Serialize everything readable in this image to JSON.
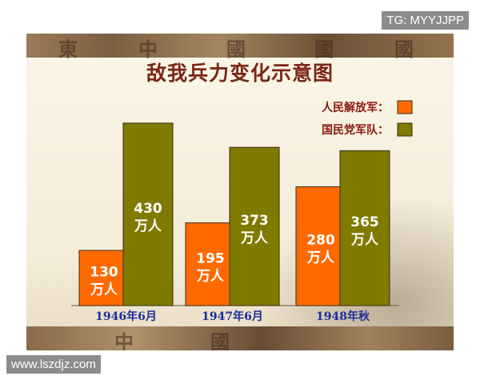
{
  "watermarks": {
    "top_right": "TG: MYYJJPP",
    "bottom_left": "www.lszdjz.com"
  },
  "colors": {
    "series_1": "#ff6a00",
    "series_2": "#7f7a00",
    "title": "#7a2616",
    "legend_text": "#8b1a10",
    "axis_labels": "#1a2f9c"
  },
  "chart_data": {
    "type": "bar",
    "title": "敌我兵力变化示意图",
    "categories": [
      "1946年6月",
      "1947年6月",
      "1948年秋"
    ],
    "unit_label": "万人",
    "series": [
      {
        "name": "人民解放军：",
        "values": [
          130,
          195,
          280
        ]
      },
      {
        "name": "国民党军队：",
        "values": [
          430,
          373,
          365
        ]
      }
    ],
    "legend_position": "top-right",
    "ylim": [
      0,
      460
    ],
    "grid": false
  }
}
